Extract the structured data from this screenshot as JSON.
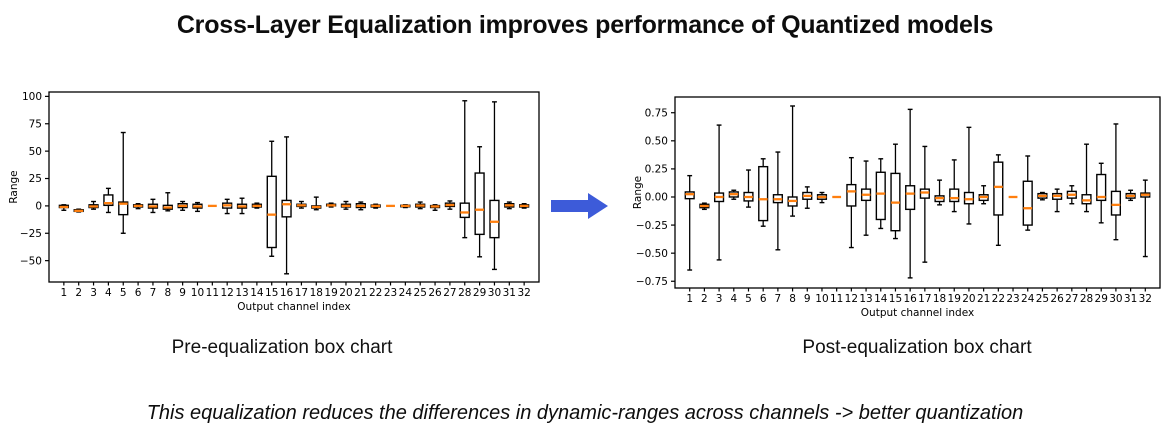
{
  "title": "Cross-Layer Equalization improves performance of Quantized models",
  "footnote": "This equalization reduces the differences in dynamic-ranges across channels -> better quantization",
  "arrow": {
    "icon": "right-block-arrow",
    "color": "#3d5bd9"
  },
  "figures": {
    "left": {
      "caption": "Pre-equalization box chart"
    },
    "right": {
      "caption": "Post-equalization box chart"
    }
  },
  "chart_data": [
    {
      "id": "pre-equalization",
      "type": "box",
      "title": "Pre-equalization box chart",
      "xlabel": "Output channel index",
      "ylabel": "Range",
      "ylim": [
        -69.5,
        104
      ],
      "grid": false,
      "ytick_values": [
        100,
        75,
        50,
        25,
        0,
        -25,
        -50
      ],
      "ytick_labels": [
        "100",
        "75",
        "50",
        "25",
        "0",
        "−25",
        "−50"
      ],
      "categories": [
        "1",
        "2",
        "3",
        "4",
        "5",
        "6",
        "7",
        "8",
        "9",
        "10",
        "11",
        "12",
        "13",
        "14",
        "15",
        "16",
        "17",
        "18",
        "19",
        "20",
        "21",
        "22",
        "23",
        "24",
        "25",
        "26",
        "27",
        "28",
        "29",
        "30",
        "31",
        "32"
      ],
      "median_color": "#ff7f0e",
      "box_color": "#000000",
      "boxes": [
        {
          "lo": -4,
          "q1": -1.5,
          "med": -1,
          "q3": 0.5,
          "hi": 1
        },
        {
          "lo": -5.5,
          "q1": -5,
          "med": -4.5,
          "q3": -3.5,
          "hi": -3
        },
        {
          "lo": -3,
          "q1": -1.5,
          "med": -0.5,
          "q3": 1,
          "hi": 4
        },
        {
          "lo": -6,
          "q1": 0.5,
          "med": 2.5,
          "q3": 10,
          "hi": 16
        },
        {
          "lo": -25,
          "q1": -8,
          "med": 2,
          "q3": 3.5,
          "hi": 67
        },
        {
          "lo": -2.5,
          "q1": -1,
          "med": 0,
          "q3": 1,
          "hi": 2
        },
        {
          "lo": -6,
          "q1": -2,
          "med": -0.5,
          "q3": 1.5,
          "hi": 6
        },
        {
          "lo": -4.5,
          "q1": -3,
          "med": -1.5,
          "q3": 0.5,
          "hi": 12
        },
        {
          "lo": -4,
          "q1": -1.5,
          "med": 0,
          "q3": 2,
          "hi": 4
        },
        {
          "lo": -5,
          "q1": -2,
          "med": -0.5,
          "q3": 1.5,
          "hi": 3
        },
        {
          "lo": 0,
          "q1": 0,
          "med": 0,
          "q3": 0,
          "hi": 0
        },
        {
          "lo": -7,
          "q1": -2,
          "med": 0.5,
          "q3": 2.5,
          "hi": 6
        },
        {
          "lo": -7,
          "q1": -2,
          "med": -0.5,
          "q3": 1.5,
          "hi": 7
        },
        {
          "lo": -2,
          "q1": -1,
          "med": 0,
          "q3": 1.5,
          "hi": 2.5
        },
        {
          "lo": -46,
          "q1": -38,
          "med": -8,
          "q3": 27,
          "hi": 59
        },
        {
          "lo": -62,
          "q1": -10,
          "med": 1.5,
          "q3": 5,
          "hi": 63
        },
        {
          "lo": -2,
          "q1": -0.5,
          "med": 0.5,
          "q3": 1.5,
          "hi": 4
        },
        {
          "lo": -3.5,
          "q1": -2,
          "med": -1,
          "q3": 0,
          "hi": 8
        },
        {
          "lo": -1,
          "q1": 0,
          "med": 0.5,
          "q3": 1.5,
          "hi": 2.5
        },
        {
          "lo": -3,
          "q1": -1,
          "med": 0,
          "q3": 1.5,
          "hi": 4
        },
        {
          "lo": -3.5,
          "q1": -1.5,
          "med": 0,
          "q3": 2,
          "hi": 3.5
        },
        {
          "lo": -2,
          "q1": -1,
          "med": 0,
          "q3": 0.8,
          "hi": 1.5
        },
        {
          "lo": 0,
          "q1": 0,
          "med": 0,
          "q3": 0,
          "hi": 0
        },
        {
          "lo": -1.5,
          "q1": -0.8,
          "med": 0,
          "q3": 0.6,
          "hi": 1
        },
        {
          "lo": -2.5,
          "q1": -1,
          "med": 0.3,
          "q3": 1.5,
          "hi": 3.5
        },
        {
          "lo": -4,
          "q1": -1.5,
          "med": -0.5,
          "q3": 0.3,
          "hi": 1
        },
        {
          "lo": -3,
          "q1": -0.5,
          "med": 0.8,
          "q3": 2.5,
          "hi": 4.5
        },
        {
          "lo": -29,
          "q1": -10.5,
          "med": -6,
          "q3": 2.5,
          "hi": 96
        },
        {
          "lo": -46.5,
          "q1": -26,
          "med": -3.5,
          "q3": 30,
          "hi": 54
        },
        {
          "lo": -58,
          "q1": -29,
          "med": -14.5,
          "q3": 5,
          "hi": 95
        },
        {
          "lo": -2.5,
          "q1": -1,
          "med": 0.5,
          "q3": 2,
          "hi": 3.5
        },
        {
          "lo": -2,
          "q1": -1,
          "med": 0,
          "q3": 1,
          "hi": 2
        }
      ]
    },
    {
      "id": "post-equalization",
      "type": "box",
      "title": "Post-equalization box chart",
      "xlabel": "Output channel index",
      "ylabel": "Range",
      "ylim": [
        -0.81,
        0.89
      ],
      "grid": false,
      "ytick_values": [
        0.75,
        0.5,
        0.25,
        0,
        -0.25,
        -0.5,
        -0.75
      ],
      "ytick_labels": [
        "0.75",
        "0.50",
        "0.25",
        "0.00",
        "−0.25",
        "−0.50",
        "−0.75"
      ],
      "categories": [
        "1",
        "2",
        "3",
        "4",
        "5",
        "6",
        "7",
        "8",
        "9",
        "10",
        "11",
        "12",
        "13",
        "14",
        "15",
        "16",
        "17",
        "18",
        "19",
        "20",
        "21",
        "22",
        "23",
        "24",
        "25",
        "26",
        "27",
        "28",
        "29",
        "30",
        "31",
        "32"
      ],
      "median_color": "#ff7f0e",
      "box_color": "#000000",
      "boxes": [
        {
          "lo": -0.65,
          "q1": -0.015,
          "med": 0.025,
          "q3": 0.045,
          "hi": 0.19
        },
        {
          "lo": -0.11,
          "q1": -0.095,
          "med": -0.08,
          "q3": -0.065,
          "hi": -0.055
        },
        {
          "lo": -0.56,
          "q1": -0.04,
          "med": 0.0,
          "q3": 0.035,
          "hi": 0.64
        },
        {
          "lo": -0.02,
          "q1": 0.0,
          "med": 0.025,
          "q3": 0.045,
          "hi": 0.06
        },
        {
          "lo": -0.09,
          "q1": -0.035,
          "med": 0.0,
          "q3": 0.04,
          "hi": 0.24
        },
        {
          "lo": -0.26,
          "q1": -0.21,
          "med": -0.02,
          "q3": 0.27,
          "hi": 0.34
        },
        {
          "lo": -0.47,
          "q1": -0.05,
          "med": -0.02,
          "q3": 0.02,
          "hi": 0.4
        },
        {
          "lo": -0.17,
          "q1": -0.08,
          "med": -0.035,
          "q3": 0.0,
          "hi": 0.81
        },
        {
          "lo": -0.1,
          "q1": -0.02,
          "med": 0.01,
          "q3": 0.04,
          "hi": 0.09
        },
        {
          "lo": -0.05,
          "q1": -0.02,
          "med": 0.0,
          "q3": 0.02,
          "hi": 0.04
        },
        {
          "lo": 0,
          "q1": 0,
          "med": 0,
          "q3": 0,
          "hi": 0
        },
        {
          "lo": -0.45,
          "q1": -0.08,
          "med": 0.05,
          "q3": 0.11,
          "hi": 0.35
        },
        {
          "lo": -0.34,
          "q1": -0.03,
          "med": 0.02,
          "q3": 0.07,
          "hi": 0.32
        },
        {
          "lo": -0.28,
          "q1": -0.2,
          "med": 0.03,
          "q3": 0.22,
          "hi": 0.34
        },
        {
          "lo": -0.37,
          "q1": -0.3,
          "med": -0.05,
          "q3": 0.21,
          "hi": 0.47
        },
        {
          "lo": -0.72,
          "q1": -0.11,
          "med": 0.03,
          "q3": 0.1,
          "hi": 0.78
        },
        {
          "lo": -0.58,
          "q1": -0.01,
          "med": 0.04,
          "q3": 0.07,
          "hi": 0.45
        },
        {
          "lo": -0.07,
          "q1": -0.04,
          "med": -0.01,
          "q3": 0.01,
          "hi": 0.15
        },
        {
          "lo": -0.13,
          "q1": -0.04,
          "med": -0.01,
          "q3": 0.07,
          "hi": 0.33
        },
        {
          "lo": -0.24,
          "q1": -0.06,
          "med": -0.02,
          "q3": 0.04,
          "hi": 0.62
        },
        {
          "lo": -0.06,
          "q1": -0.03,
          "med": 0.0,
          "q3": 0.02,
          "hi": 0.1
        },
        {
          "lo": -0.43,
          "q1": -0.16,
          "med": 0.09,
          "q3": 0.31,
          "hi": 0.375
        },
        {
          "lo": 0,
          "q1": 0,
          "med": 0,
          "q3": 0,
          "hi": 0
        },
        {
          "lo": -0.295,
          "q1": -0.25,
          "med": -0.1,
          "q3": 0.14,
          "hi": 0.365
        },
        {
          "lo": -0.025,
          "q1": -0.01,
          "med": 0.01,
          "q3": 0.03,
          "hi": 0.04
        },
        {
          "lo": -0.13,
          "q1": -0.02,
          "med": 0.01,
          "q3": 0.03,
          "hi": 0.07
        },
        {
          "lo": -0.06,
          "q1": -0.01,
          "med": 0.02,
          "q3": 0.05,
          "hi": 0.1
        },
        {
          "lo": -0.13,
          "q1": -0.06,
          "med": -0.03,
          "q3": 0.02,
          "hi": 0.47
        },
        {
          "lo": -0.23,
          "q1": -0.03,
          "med": 0.0,
          "q3": 0.2,
          "hi": 0.3
        },
        {
          "lo": -0.38,
          "q1": -0.16,
          "med": -0.07,
          "q3": 0.05,
          "hi": 0.65
        },
        {
          "lo": -0.03,
          "q1": -0.01,
          "med": 0.01,
          "q3": 0.03,
          "hi": 0.06
        },
        {
          "lo": -0.53,
          "q1": 0.0,
          "med": 0.02,
          "q3": 0.035,
          "hi": 0.15
        }
      ]
    }
  ]
}
